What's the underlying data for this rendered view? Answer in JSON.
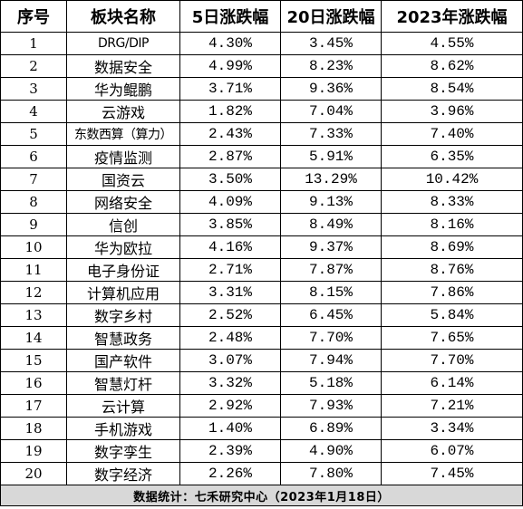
{
  "headers": [
    "序号",
    "板块名称",
    "5日涨跌幅",
    "20日涨跌幅",
    "2023年涨跌幅"
  ],
  "rows": [
    {
      "index": "1",
      "name": "DRG/DIP",
      "d5": "4.30%",
      "d20": "3.45%",
      "ytd": "4.55%"
    },
    {
      "index": "2",
      "name": "数据安全",
      "d5": "4.99%",
      "d20": "8.23%",
      "ytd": "8.62%"
    },
    {
      "index": "3",
      "name": "华为鲲鹏",
      "d5": "3.71%",
      "d20": "9.36%",
      "ytd": "8.54%"
    },
    {
      "index": "4",
      "name": "云游戏",
      "d5": "1.82%",
      "d20": "7.04%",
      "ytd": "3.96%"
    },
    {
      "index": "5",
      "name": "东数西算（算力）",
      "d5": "2.43%",
      "d20": "7.33%",
      "ytd": "7.40%"
    },
    {
      "index": "6",
      "name": "疫情监测",
      "d5": "2.87%",
      "d20": "5.91%",
      "ytd": "6.35%"
    },
    {
      "index": "7",
      "name": "国资云",
      "d5": "3.50%",
      "d20": "13.29%",
      "ytd": "10.42%"
    },
    {
      "index": "8",
      "name": "网络安全",
      "d5": "4.09%",
      "d20": "9.13%",
      "ytd": "8.33%"
    },
    {
      "index": "9",
      "name": "信创",
      "d5": "3.85%",
      "d20": "8.49%",
      "ytd": "8.16%"
    },
    {
      "index": "10",
      "name": "华为欧拉",
      "d5": "4.16%",
      "d20": "9.37%",
      "ytd": "8.69%"
    },
    {
      "index": "11",
      "name": "电子身份证",
      "d5": "2.71%",
      "d20": "7.87%",
      "ytd": "8.76%"
    },
    {
      "index": "12",
      "name": "计算机应用",
      "d5": "3.31%",
      "d20": "8.15%",
      "ytd": "7.86%"
    },
    {
      "index": "13",
      "name": "数字乡村",
      "d5": "2.52%",
      "d20": "6.45%",
      "ytd": "5.84%"
    },
    {
      "index": "14",
      "name": "智慧政务",
      "d5": "2.48%",
      "d20": "7.70%",
      "ytd": "7.65%"
    },
    {
      "index": "15",
      "name": "国产软件",
      "d5": "3.07%",
      "d20": "7.94%",
      "ytd": "7.70%"
    },
    {
      "index": "16",
      "name": "智慧灯杆",
      "d5": "3.32%",
      "d20": "5.18%",
      "ytd": "6.14%"
    },
    {
      "index": "17",
      "name": "云计算",
      "d5": "2.92%",
      "d20": "7.93%",
      "ytd": "7.21%"
    },
    {
      "index": "18",
      "name": "手机游戏",
      "d5": "1.40%",
      "d20": "6.89%",
      "ytd": "3.34%"
    },
    {
      "index": "19",
      "name": "数字孪生",
      "d5": "2.39%",
      "d20": "4.90%",
      "ytd": "6.07%"
    },
    {
      "index": "20",
      "name": "数字经济",
      "d5": "2.26%",
      "d20": "7.80%",
      "ytd": "7.45%"
    }
  ],
  "footer": "数据统计：七禾研究中心（2023年1月18日）",
  "colors": {
    "border": "#000000",
    "footer_bg": "#d8d8d8",
    "background": "#ffffff"
  }
}
